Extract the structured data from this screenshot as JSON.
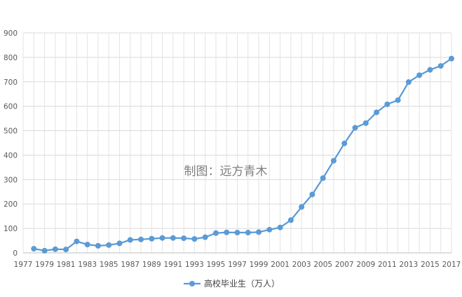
{
  "chart_data": {
    "type": "line",
    "watermark": "制图：远方青木",
    "xlabel": "",
    "ylabel": "",
    "ylim": [
      0,
      900
    ],
    "y_ticks": [
      0,
      100,
      200,
      300,
      400,
      500,
      600,
      700,
      800,
      900
    ],
    "x_ticks": [
      1977,
      1979,
      1981,
      1983,
      1985,
      1987,
      1989,
      1991,
      1993,
      1995,
      1997,
      1999,
      2001,
      2003,
      2005,
      2007,
      2009,
      2011,
      2013,
      2015,
      2017
    ],
    "xlim": [
      1977,
      2017
    ],
    "grid": true,
    "legend": "bottom",
    "series": [
      {
        "name": "高校毕业生（万人）",
        "color": "#5b9bd5",
        "x": [
          1978,
          1979,
          1980,
          1981,
          1982,
          1983,
          1984,
          1985,
          1986,
          1987,
          1988,
          1989,
          1990,
          1991,
          1992,
          1993,
          1994,
          1995,
          1996,
          1997,
          1998,
          1999,
          2000,
          2001,
          2002,
          2003,
          2004,
          2005,
          2006,
          2007,
          2008,
          2009,
          2010,
          2011,
          2012,
          2013,
          2014,
          2015,
          2016,
          2017
        ],
        "values": [
          17,
          9,
          15,
          14,
          47,
          34,
          29,
          32,
          39,
          53,
          55,
          58,
          61,
          61,
          60,
          57,
          64,
          81,
          84,
          83,
          83,
          85,
          95,
          104,
          134,
          188,
          239,
          306,
          377,
          448,
          512,
          531,
          575,
          608,
          625,
          699,
          727,
          749,
          765,
          795
        ]
      }
    ]
  }
}
